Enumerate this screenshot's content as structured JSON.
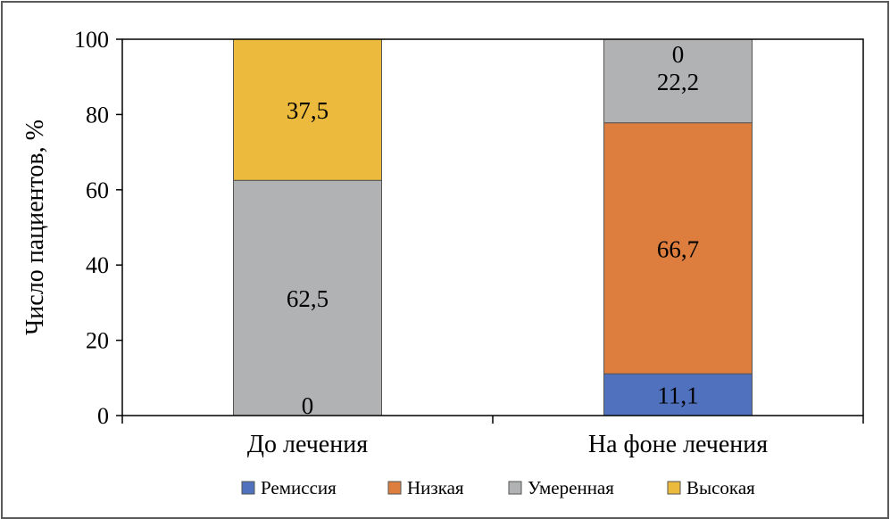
{
  "chart_data": {
    "type": "bar",
    "stacked": true,
    "ylabel": "Число пациентов, %",
    "xlabel": "",
    "ylim": [
      0,
      100
    ],
    "yticks": [
      0,
      20,
      40,
      60,
      80,
      100
    ],
    "categories": [
      "До лечения",
      "На фоне лечения"
    ],
    "series": [
      {
        "name": "Ремиссия",
        "color": "#4f71be",
        "values": [
          0,
          11.1
        ],
        "labels": [
          "0",
          "11,1"
        ]
      },
      {
        "name": "Низкая",
        "color": "#dd7e3e",
        "values": [
          0,
          66.7
        ],
        "labels": [
          "",
          "66,7"
        ]
      },
      {
        "name": "Умеренная",
        "color": "#b1b2b4",
        "values": [
          62.5,
          22.2
        ],
        "labels": [
          "62,5",
          "22,2"
        ]
      },
      {
        "name": "Высокая",
        "color": "#ecbb3d",
        "values": [
          37.5,
          0
        ],
        "labels": [
          "37,5",
          "0"
        ]
      }
    ],
    "legend": {
      "position": "bottom"
    },
    "grid": false
  }
}
